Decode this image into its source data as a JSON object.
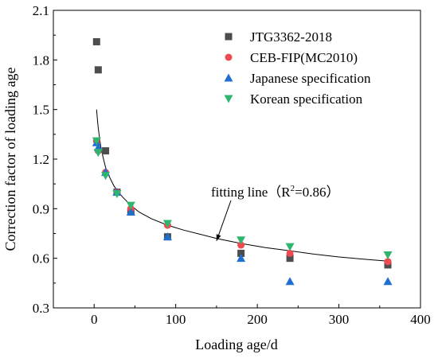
{
  "chart_data": {
    "type": "scatter",
    "xlabel": "Loading age/d",
    "ylabel": "Correction factor of loading age",
    "xlim": [
      -50,
      400
    ],
    "ylim": [
      0.3,
      2.1
    ],
    "xticks": [
      0,
      100,
      200,
      300,
      400
    ],
    "xtick_labels": [
      "0",
      "100",
      "200",
      "300",
      "400"
    ],
    "yticks": [
      0.3,
      0.6,
      0.9,
      1.2,
      1.5,
      1.8,
      2.1
    ],
    "ytick_labels": [
      "0.3",
      "0.6",
      "0.9",
      "1.2",
      "1.5",
      "1.8",
      "2.1"
    ],
    "grid": false,
    "legend_position": "top-right",
    "series": [
      {
        "name": "JTG3362-2018",
        "marker": "square",
        "color": "#4d4d4d",
        "points": [
          [
            3,
            1.91
          ],
          [
            5,
            1.74
          ],
          [
            14,
            1.25
          ],
          [
            28,
            1.0
          ],
          [
            45,
            0.88
          ],
          [
            90,
            0.73
          ],
          [
            180,
            0.63
          ],
          [
            240,
            0.6
          ],
          [
            360,
            0.56
          ]
        ]
      },
      {
        "name": "CEB-FIP(MC2010)",
        "marker": "circle",
        "color": "#f0494f",
        "points": [
          [
            3,
            1.31
          ],
          [
            5,
            1.25
          ],
          [
            14,
            1.12
          ],
          [
            28,
            1.0
          ],
          [
            45,
            0.9
          ],
          [
            90,
            0.8
          ],
          [
            180,
            0.68
          ],
          [
            240,
            0.63
          ],
          [
            360,
            0.58
          ]
        ]
      },
      {
        "name": "Japanese specification",
        "marker": "triangle-up",
        "color": "#1f6fd1",
        "points": [
          [
            3,
            1.3
          ],
          [
            5,
            1.27
          ],
          [
            14,
            1.12
          ],
          [
            28,
            1.0
          ],
          [
            45,
            0.88
          ],
          [
            90,
            0.73
          ],
          [
            180,
            0.6
          ],
          [
            240,
            0.46
          ],
          [
            360,
            0.46
          ]
        ]
      },
      {
        "name": "Korean specification",
        "marker": "triangle-down",
        "color": "#2fb66e",
        "points": [
          [
            3,
            1.31
          ],
          [
            5,
            1.24
          ],
          [
            14,
            1.1
          ],
          [
            28,
            0.99
          ],
          [
            45,
            0.92
          ],
          [
            90,
            0.81
          ],
          [
            180,
            0.71
          ],
          [
            240,
            0.67
          ],
          [
            360,
            0.62
          ]
        ]
      }
    ],
    "fit_line": {
      "points": [
        [
          3,
          1.5
        ],
        [
          4,
          1.44
        ],
        [
          5,
          1.39
        ],
        [
          6,
          1.35
        ],
        [
          8,
          1.28
        ],
        [
          10,
          1.23
        ],
        [
          12,
          1.19
        ],
        [
          14,
          1.15
        ],
        [
          17,
          1.11
        ],
        [
          20,
          1.08
        ],
        [
          24,
          1.04
        ],
        [
          28,
          1.01
        ],
        [
          35,
          0.97
        ],
        [
          45,
          0.92
        ],
        [
          55,
          0.88
        ],
        [
          70,
          0.84
        ],
        [
          90,
          0.8
        ],
        [
          110,
          0.77
        ],
        [
          130,
          0.745
        ],
        [
          150,
          0.72
        ],
        [
          180,
          0.69
        ],
        [
          210,
          0.665
        ],
        [
          240,
          0.645
        ],
        [
          270,
          0.625
        ],
        [
          300,
          0.608
        ],
        [
          330,
          0.595
        ],
        [
          360,
          0.583
        ]
      ],
      "color": "#000000"
    },
    "annotation": {
      "text_prefix": "fitting line（R",
      "superscript": "2",
      "text_suffix": "=0.86）",
      "arrow_tip": [
        150,
        0.705
      ]
    }
  }
}
